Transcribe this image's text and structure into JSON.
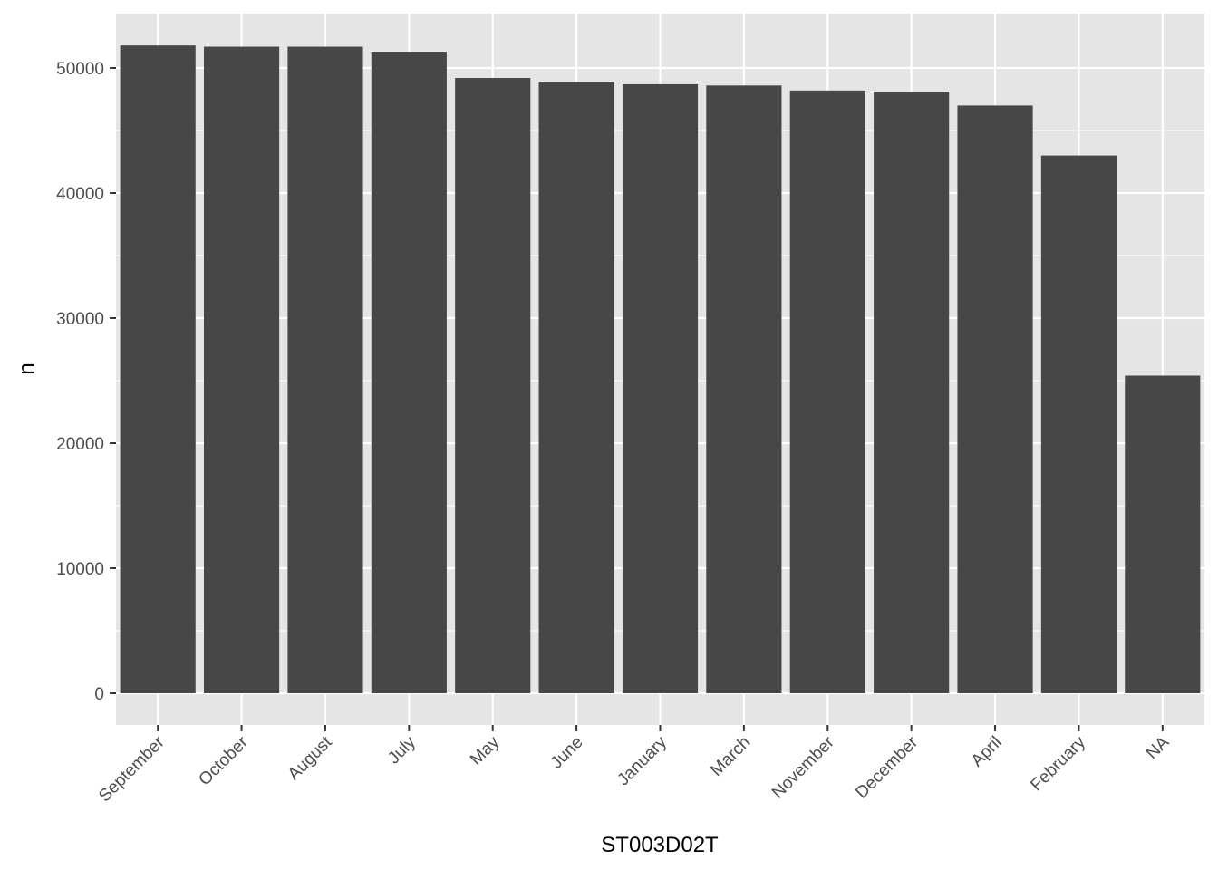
{
  "chart_data": {
    "type": "bar",
    "title": "",
    "xlabel": "ST003D02T",
    "ylabel": "n",
    "categories": [
      "September",
      "October",
      "August",
      "July",
      "May",
      "June",
      "January",
      "March",
      "November",
      "December",
      "April",
      "February",
      "NA"
    ],
    "values": [
      51800,
      51700,
      51700,
      51300,
      49200,
      48900,
      48700,
      48600,
      48200,
      48100,
      47000,
      43000,
      25400
    ],
    "ylim": [
      0,
      54400
    ],
    "yticks": [
      0,
      10000,
      20000,
      30000,
      40000,
      50000
    ],
    "ytick_labels": [
      "0",
      "10000",
      "20000",
      "30000",
      "40000",
      "50000"
    ],
    "grid": true,
    "legend": "none",
    "colors": {
      "panel_background": "#e5e5e5",
      "grid": "#ffffff",
      "bar": "#474747",
      "tick": "#333333"
    }
  }
}
